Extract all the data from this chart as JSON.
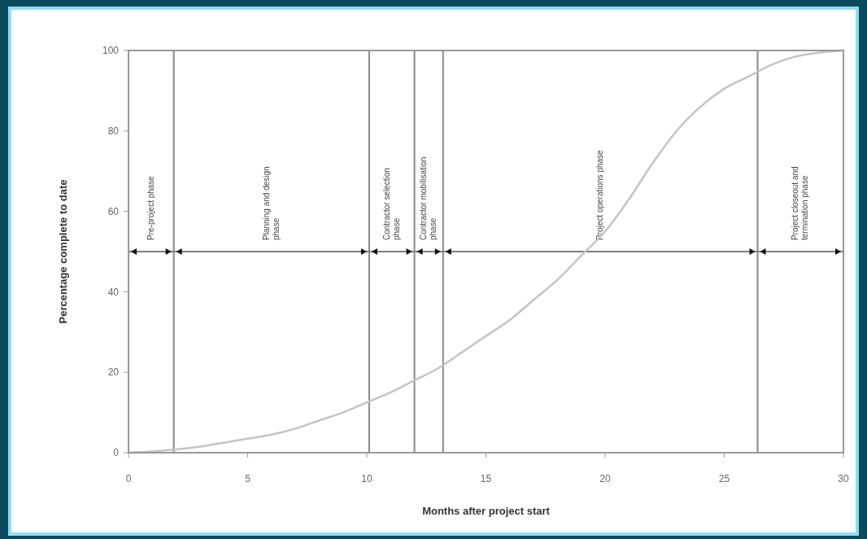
{
  "chart_data": {
    "type": "line",
    "xlabel": "Months after project start",
    "ylabel": "Percentage complete to date",
    "x": [
      0,
      1,
      2,
      3,
      4,
      5,
      6,
      7,
      8,
      9,
      10,
      11,
      12,
      13,
      14,
      15,
      16,
      17,
      18,
      19,
      20,
      21,
      22,
      23,
      24,
      25,
      26,
      27,
      28,
      29,
      30
    ],
    "series": [
      {
        "color": "#c4c4c4",
        "values": [
          0,
          0.3,
          0.8,
          1.5,
          2.5,
          3.5,
          4.5,
          6,
          8,
          10,
          12.5,
          15,
          18,
          21,
          25,
          29,
          33,
          38,
          43,
          49,
          55,
          63,
          72,
          80,
          86,
          90.5,
          93.5,
          96.5,
          98.5,
          99.5,
          100
        ]
      }
    ],
    "xlim": [
      0,
      30
    ],
    "xticks": [
      0,
      5,
      10,
      15,
      20,
      25,
      30
    ],
    "ylim": [
      0,
      100
    ],
    "yticks": [
      0,
      20,
      40,
      60,
      80,
      100
    ],
    "marker": "none",
    "line_style": "solid",
    "ref_lines": [
      {
        "axis": "y",
        "value": 50,
        "color": "#555555"
      },
      {
        "axis": "x",
        "value": 1.9,
        "color": "#888888"
      },
      {
        "axis": "x",
        "value": 10.1,
        "color": "#888888"
      },
      {
        "axis": "x",
        "value": 12,
        "color": "#888888"
      },
      {
        "axis": "x",
        "value": 13.2,
        "color": "#888888"
      },
      {
        "axis": "x",
        "value": 26.4,
        "color": "#888888"
      }
    ],
    "annotations": [
      {
        "text": "Pre-project phase",
        "x": 0.95,
        "y": 50
      },
      {
        "text": "Planning and design phase",
        "x": 6,
        "y": 50
      },
      {
        "text": "Contractor selection phase",
        "x": 11.05,
        "y": 50
      },
      {
        "text": "Contractor mobilisation phase",
        "x": 12.6,
        "y": 50
      },
      {
        "text": "Project operations phase",
        "x": 19.8,
        "y": 50
      },
      {
        "text": "Project closeout and termination phase",
        "x": 28.2,
        "y": 50
      }
    ]
  }
}
